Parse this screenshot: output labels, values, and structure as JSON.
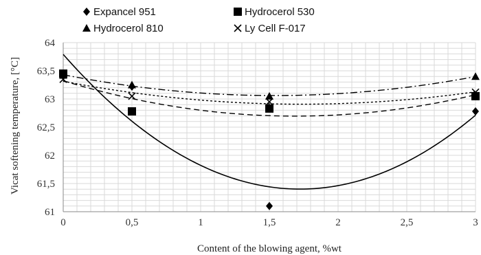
{
  "chart_data": {
    "type": "scatter",
    "xlabel": "Content of the blowing agent, %wt",
    "ylabel": "Vicat softening temperature, [°C]",
    "xlim": [
      0,
      3
    ],
    "ylim": [
      61,
      64
    ],
    "x_ticks": [
      {
        "v": 0,
        "label": "0"
      },
      {
        "v": 0.5,
        "label": "0,5"
      },
      {
        "v": 1,
        "label": "1"
      },
      {
        "v": 1.5,
        "label": "1,5"
      },
      {
        "v": 2,
        "label": "2"
      },
      {
        "v": 2.5,
        "label": "2,5"
      },
      {
        "v": 3,
        "label": "3"
      }
    ],
    "y_ticks": [
      {
        "v": 61,
        "label": "61"
      },
      {
        "v": 61.5,
        "label": "61,5"
      },
      {
        "v": 62,
        "label": "62"
      },
      {
        "v": 62.5,
        "label": "62,5"
      },
      {
        "v": 63,
        "label": "63"
      },
      {
        "v": 63.5,
        "label": "63,5"
      },
      {
        "v": 64,
        "label": "64"
      }
    ],
    "grid": true,
    "legend_position": "top",
    "series": [
      {
        "name": "Expancel  951",
        "marker": "diamond",
        "trend": "solid",
        "x": [
          0,
          0.5,
          1.5,
          3
        ],
        "y": [
          63.45,
          63.22,
          61.1,
          62.78
        ]
      },
      {
        "name": "Hydrocerol 530",
        "marker": "square",
        "trend": "dashed",
        "x": [
          0,
          0.5,
          1.5,
          3
        ],
        "y": [
          63.45,
          62.78,
          62.83,
          63.05
        ]
      },
      {
        "name": "Hydrocerol 810",
        "marker": "triangle",
        "trend": "dashdot",
        "x": [
          0,
          0.5,
          1.5,
          3
        ],
        "y": [
          63.42,
          63.25,
          63.05,
          63.4
        ]
      },
      {
        "name": "Ly Cell F-017",
        "marker": "x",
        "trend": "dotted",
        "x": [
          0,
          0.5,
          1.5,
          3
        ],
        "y": [
          63.35,
          63.05,
          62.95,
          63.12
        ]
      }
    ]
  }
}
